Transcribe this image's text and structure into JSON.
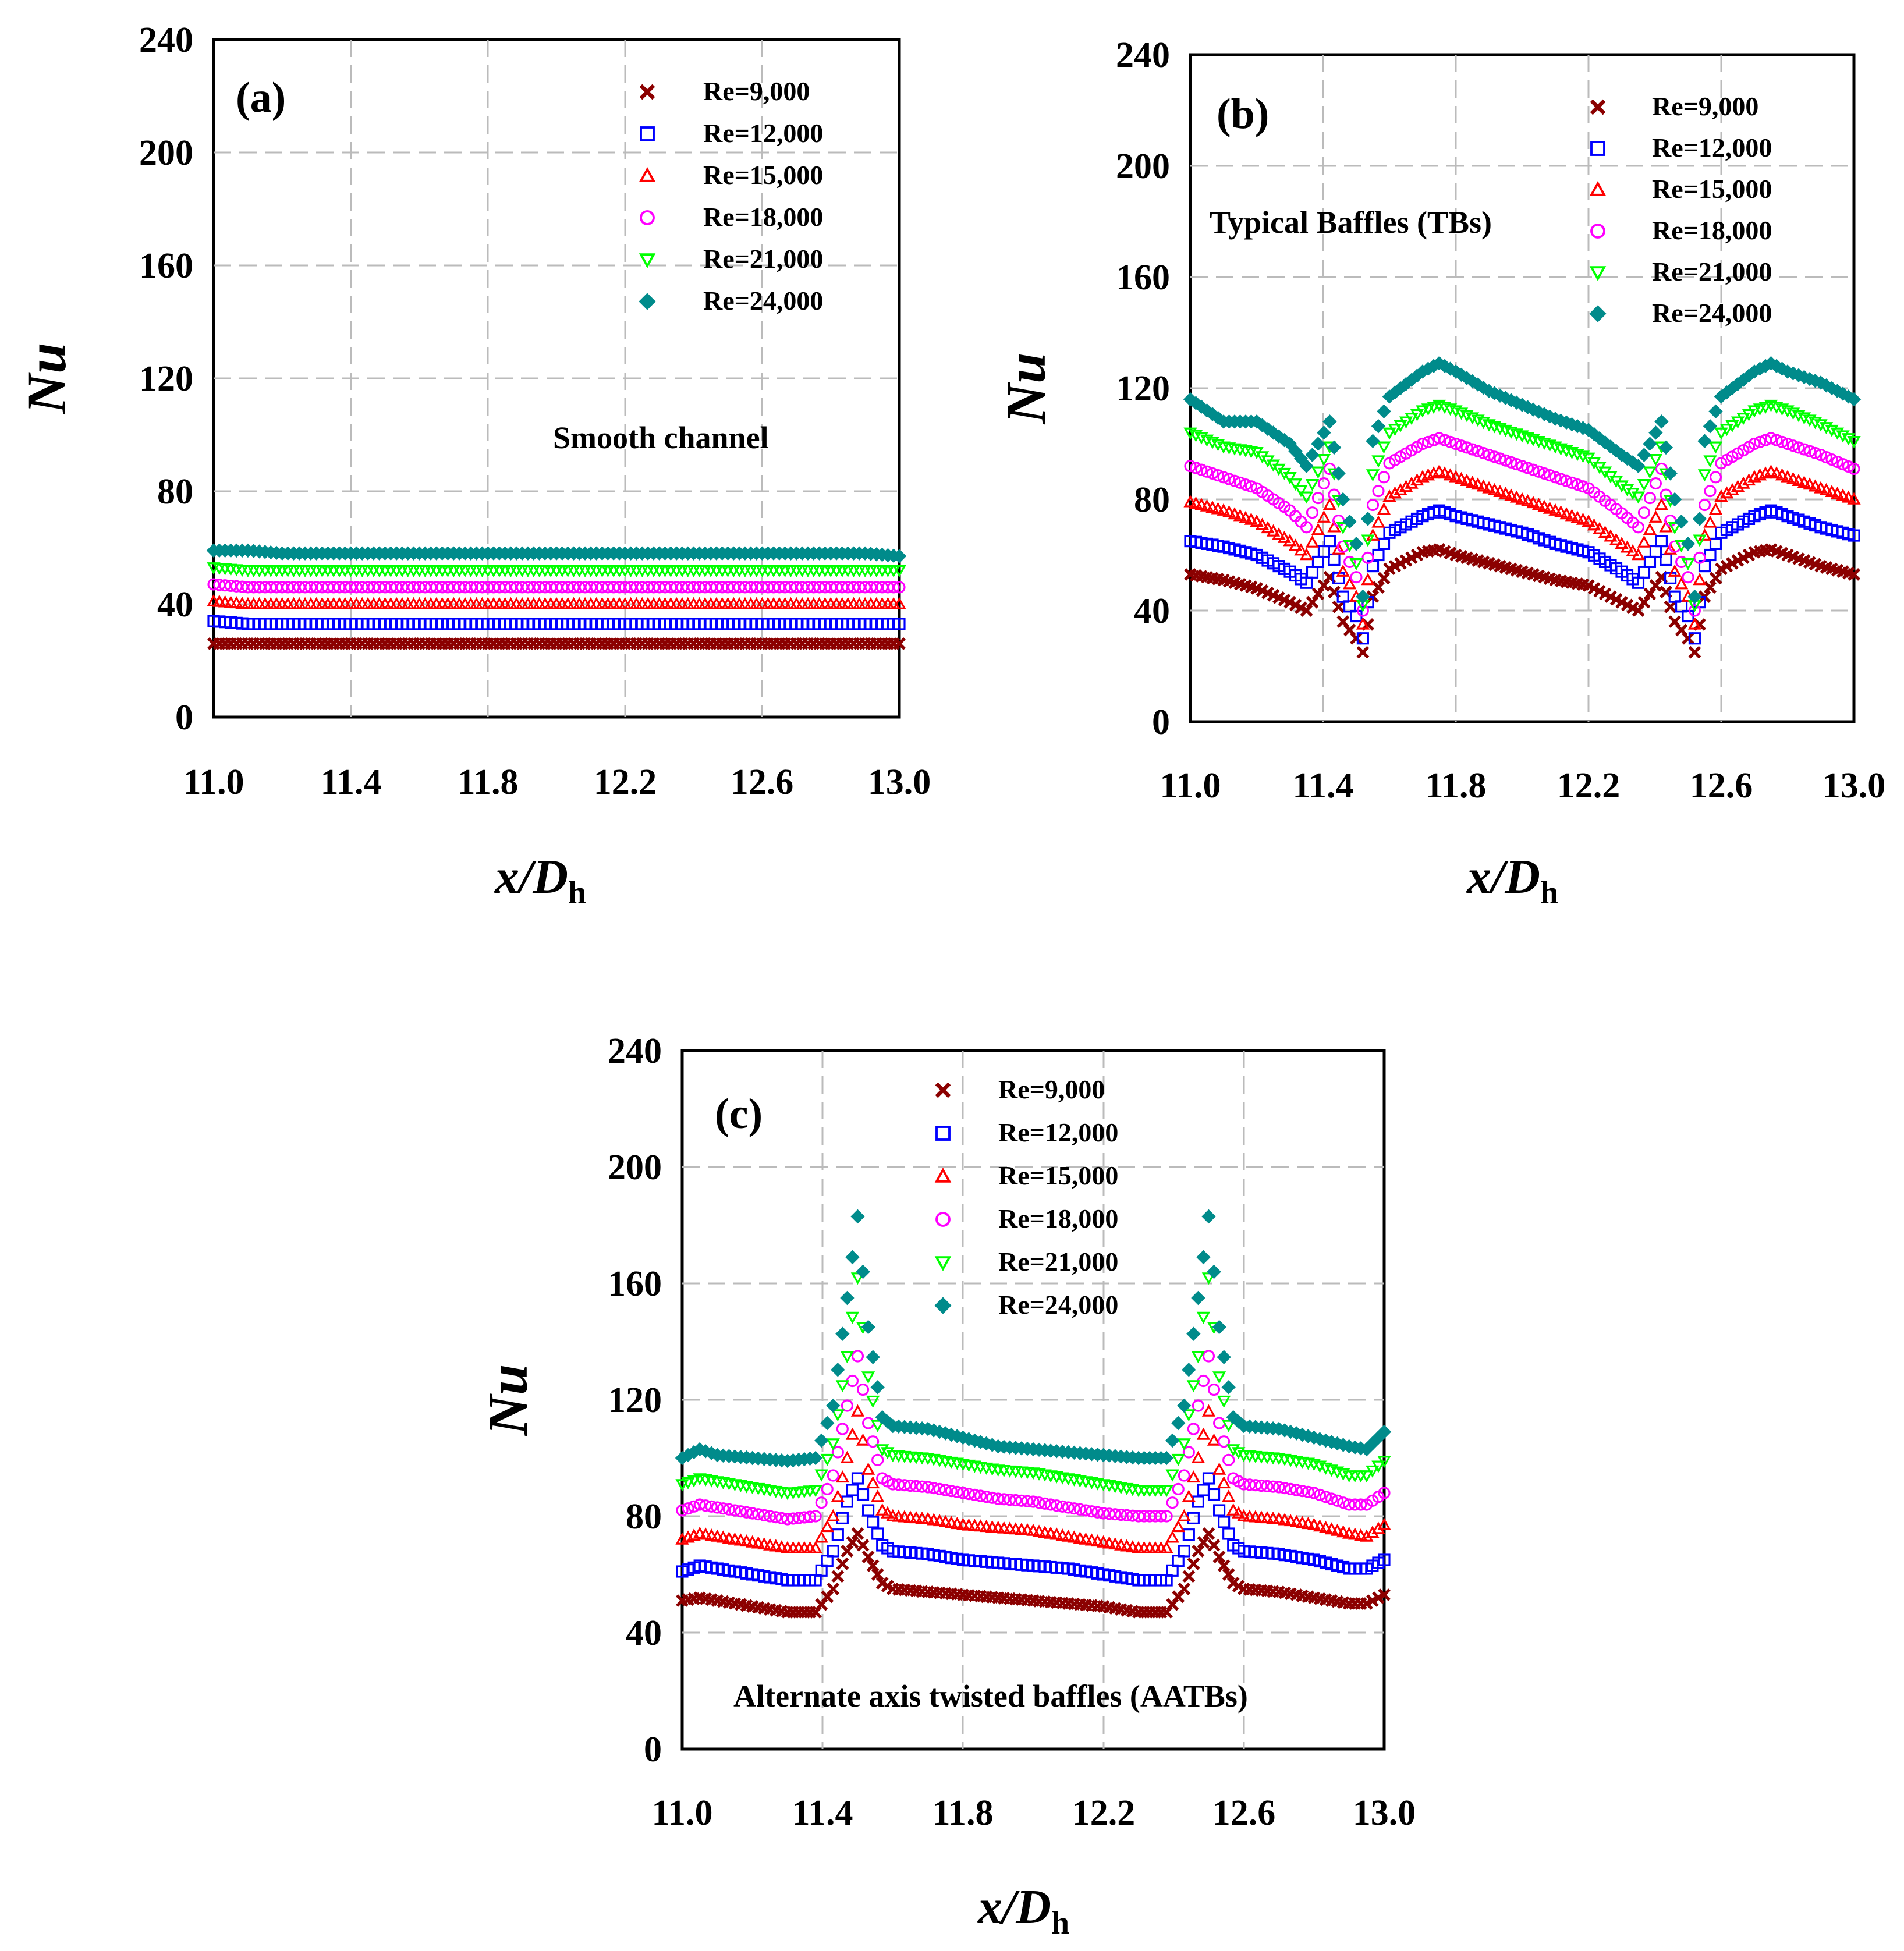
{
  "chart_data": [
    {
      "type": "scatter",
      "panel": "(a)",
      "annotation": "Smooth channel",
      "xlabel": "x/D",
      "xlabel_subscript": "h",
      "ylabel": "Nu",
      "xlim": [
        11.0,
        13.0
      ],
      "ylim": [
        0,
        240
      ],
      "xticks": [
        "11.0",
        "11.4",
        "11.8",
        "12.2",
        "12.6",
        "13.0"
      ],
      "yticks": [
        "0",
        "40",
        "80",
        "120",
        "160",
        "200",
        "240"
      ],
      "grid": true,
      "legend": "top-right",
      "x": [
        11.0,
        11.1,
        11.2,
        11.3,
        11.4,
        11.5,
        11.6,
        11.7,
        11.8,
        11.9,
        12.0,
        12.1,
        12.2,
        12.3,
        12.4,
        12.5,
        12.6,
        12.7,
        12.8,
        12.9,
        13.0
      ],
      "series": [
        {
          "name": "Re=9,000",
          "marker": "x",
          "color": "#8B0000",
          "values": [
            26,
            26,
            26,
            26,
            26,
            26,
            26,
            26,
            26,
            26,
            26,
            26,
            26,
            26,
            26,
            26,
            26,
            26,
            26,
            26,
            26
          ]
        },
        {
          "name": "Re=12,000",
          "marker": "square",
          "color": "#0000FF",
          "values": [
            34,
            33,
            33,
            33,
            33,
            33,
            33,
            33,
            33,
            33,
            33,
            33,
            33,
            33,
            33,
            33,
            33,
            33,
            33,
            33,
            33
          ]
        },
        {
          "name": "Re=15,000",
          "marker": "triangle",
          "color": "#FF0000",
          "values": [
            41,
            40,
            40,
            40,
            40,
            40,
            40,
            40,
            40,
            40,
            40,
            40,
            40,
            40,
            40,
            40,
            40,
            40,
            40,
            40,
            40
          ]
        },
        {
          "name": "Re=18,000",
          "marker": "circle",
          "color": "#FF00FF",
          "values": [
            47,
            46,
            46,
            46,
            46,
            46,
            46,
            46,
            46,
            46,
            46,
            46,
            46,
            46,
            46,
            46,
            46,
            46,
            46,
            46,
            46
          ]
        },
        {
          "name": "Re=21,000",
          "marker": "triangle-down",
          "color": "#00FF00",
          "values": [
            53,
            52,
            52,
            52,
            52,
            52,
            52,
            52,
            52,
            52,
            52,
            52,
            52,
            52,
            52,
            52,
            52,
            52,
            52,
            52,
            52
          ]
        },
        {
          "name": "Re=24,000",
          "marker": "diamond",
          "color": "#008B8B",
          "values": [
            59,
            59,
            58,
            58,
            58,
            58,
            58,
            58,
            58,
            58,
            58,
            58,
            58,
            58,
            58,
            58,
            58,
            58,
            58,
            58,
            57
          ]
        }
      ]
    },
    {
      "type": "scatter",
      "panel": "(b)",
      "annotation": "Typical Baffles (TBs)",
      "xlabel": "x/D",
      "xlabel_subscript": "h",
      "ylabel": "Nu",
      "xlim": [
        11.0,
        13.0
      ],
      "ylim": [
        0,
        240
      ],
      "xticks": [
        "11.0",
        "11.4",
        "11.8",
        "12.2",
        "12.6",
        "13.0"
      ],
      "yticks": [
        "0",
        "40",
        "80",
        "120",
        "160",
        "200",
        "240"
      ],
      "grid": true,
      "legend": "top-right",
      "x": [
        11.0,
        11.1,
        11.2,
        11.3,
        11.35,
        11.42,
        11.46,
        11.5,
        11.52,
        11.55,
        11.6,
        11.7,
        11.75,
        11.8,
        11.9,
        12.0,
        12.1,
        12.2,
        12.3,
        12.35,
        12.42,
        12.46,
        12.5,
        12.52,
        12.55,
        12.6,
        12.7,
        12.75,
        12.8,
        12.9,
        13.0
      ],
      "series": [
        {
          "name": "Re=9,000",
          "marker": "x",
          "color": "#8B0000",
          "values": [
            53,
            51,
            48,
            43,
            40,
            52,
            36,
            30,
            25,
            45,
            55,
            61,
            62,
            60,
            57,
            54,
            51,
            49,
            43,
            40,
            52,
            36,
            30,
            25,
            45,
            55,
            61,
            62,
            60,
            56,
            53
          ]
        },
        {
          "name": "Re=12,000",
          "marker": "square",
          "color": "#0000FF",
          "values": [
            65,
            63,
            60,
            54,
            50,
            65,
            45,
            38,
            30,
            56,
            68,
            74,
            76,
            74,
            71,
            68,
            64,
            61,
            54,
            50,
            65,
            45,
            38,
            30,
            56,
            68,
            74,
            76,
            74,
            70,
            67
          ]
        },
        {
          "name": "Re=15,000",
          "marker": "triangle",
          "color": "#FF0000",
          "values": [
            79,
            76,
            72,
            65,
            60,
            78,
            54,
            45,
            35,
            67,
            81,
            88,
            90,
            88,
            84,
            80,
            76,
            72,
            64,
            60,
            78,
            54,
            45,
            35,
            67,
            81,
            88,
            90,
            88,
            84,
            80
          ]
        },
        {
          "name": "Re=18,000",
          "marker": "circle",
          "color": "#FF00FF",
          "values": [
            92,
            88,
            84,
            76,
            70,
            91,
            63,
            52,
            40,
            78,
            93,
            100,
            102,
            100,
            96,
            92,
            88,
            84,
            75,
            70,
            91,
            63,
            52,
            40,
            78,
            93,
            100,
            102,
            100,
            96,
            91
          ]
        },
        {
          "name": "Re=21,000",
          "marker": "triangle-down",
          "color": "#00FF00",
          "values": [
            104,
            99,
            97,
            88,
            81,
            99,
            70,
            57,
            42,
            89,
            104,
            112,
            114,
            112,
            107,
            103,
            99,
            95,
            85,
            81,
            99,
            70,
            57,
            42,
            89,
            104,
            112,
            114,
            112,
            107,
            101
          ]
        },
        {
          "name": "Re=24,000",
          "marker": "diamond",
          "color": "#008B8B",
          "values": [
            116,
            108,
            108,
            100,
            92,
            108,
            80,
            64,
            45,
            101,
            117,
            126,
            129,
            126,
            119,
            114,
            109,
            105,
            96,
            92,
            108,
            80,
            64,
            45,
            101,
            117,
            126,
            129,
            126,
            122,
            116
          ]
        }
      ]
    },
    {
      "type": "scatter",
      "panel": "(c)",
      "annotation": "Alternate axis twisted baffles (AATBs)",
      "xlabel": "x/D",
      "xlabel_subscript": "h",
      "ylabel": "Nu",
      "xlim": [
        11.0,
        13.0
      ],
      "ylim": [
        0,
        240
      ],
      "xticks": [
        "11.0",
        "11.4",
        "11.8",
        "12.2",
        "12.6",
        "13.0"
      ],
      "yticks": [
        "0",
        "40",
        "80",
        "120",
        "160",
        "200",
        "240"
      ],
      "grid": true,
      "legend": "top-right",
      "x": [
        11.0,
        11.05,
        11.1,
        11.2,
        11.3,
        11.38,
        11.43,
        11.47,
        11.5,
        11.53,
        11.57,
        11.6,
        11.7,
        11.8,
        11.9,
        12.0,
        12.1,
        12.2,
        12.3,
        12.38,
        12.43,
        12.47,
        12.5,
        12.53,
        12.57,
        12.6,
        12.7,
        12.8,
        12.9,
        12.95,
        13.0
      ],
      "series": [
        {
          "name": "Re=9,000",
          "marker": "x",
          "color": "#8B0000",
          "values": [
            51,
            52,
            51,
            49,
            47,
            47,
            55,
            68,
            74,
            66,
            57,
            55,
            54,
            53,
            52,
            51,
            50,
            49,
            47,
            47,
            55,
            68,
            74,
            66,
            57,
            55,
            54,
            52,
            50,
            50,
            53
          ]
        },
        {
          "name": "Re=12,000",
          "marker": "square",
          "color": "#0000FF",
          "values": [
            61,
            63,
            62,
            60,
            58,
            58,
            68,
            85,
            93,
            82,
            70,
            68,
            67,
            65,
            64,
            63,
            62,
            60,
            58,
            58,
            68,
            85,
            93,
            82,
            70,
            68,
            67,
            65,
            62,
            62,
            65
          ]
        },
        {
          "name": "Re=15,000",
          "marker": "triangle",
          "color": "#FF0000",
          "values": [
            72,
            74,
            73,
            71,
            69,
            69,
            80,
            100,
            116,
            96,
            82,
            80,
            79,
            77,
            76,
            75,
            73,
            71,
            69,
            69,
            80,
            100,
            116,
            96,
            82,
            80,
            79,
            77,
            74,
            73,
            77
          ]
        },
        {
          "name": "Re=18,000",
          "marker": "circle",
          "color": "#FF00FF",
          "values": [
            82,
            84,
            83,
            81,
            79,
            80,
            94,
            118,
            135,
            112,
            93,
            91,
            90,
            88,
            86,
            85,
            83,
            81,
            80,
            80,
            94,
            118,
            135,
            112,
            93,
            91,
            90,
            88,
            84,
            84,
            88
          ]
        },
        {
          "name": "Re=21,000",
          "marker": "triangle-down",
          "color": "#00FF00",
          "values": [
            91,
            93,
            92,
            90,
            88,
            89,
            105,
            135,
            162,
            128,
            103,
            101,
            100,
            98,
            96,
            95,
            93,
            91,
            89,
            89,
            105,
            135,
            162,
            128,
            103,
            101,
            100,
            98,
            94,
            94,
            99
          ]
        },
        {
          "name": "Re=24,000",
          "marker": "diamond",
          "color": "#008B8B",
          "values": [
            100,
            103,
            101,
            100,
            99,
            100,
            118,
            155,
            183,
            145,
            114,
            111,
            110,
            107,
            104,
            103,
            102,
            101,
            100,
            100,
            118,
            155,
            183,
            145,
            114,
            111,
            110,
            107,
            104,
            103,
            109
          ]
        }
      ]
    }
  ]
}
